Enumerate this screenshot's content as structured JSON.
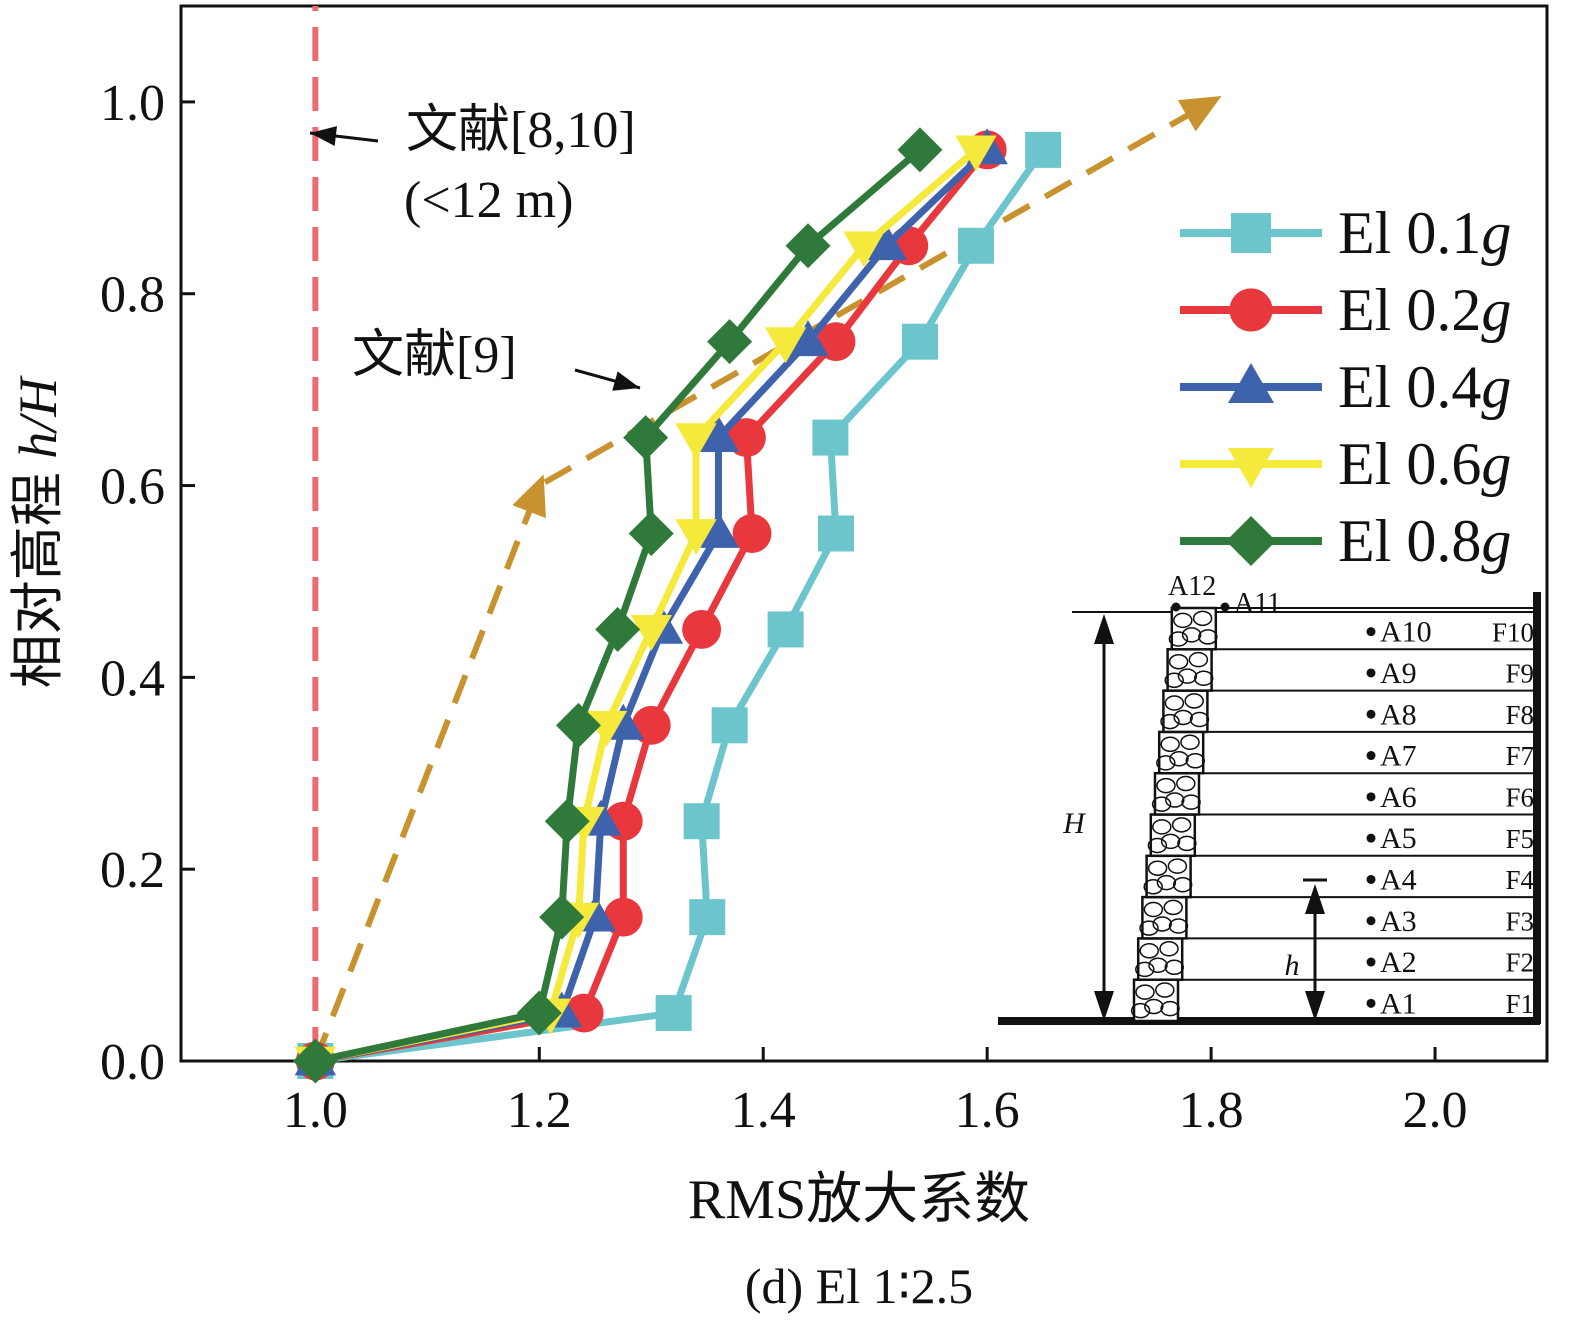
{
  "chart_data": {
    "type": "line",
    "xlabel": "RMS放大系数",
    "ylabel": "相对高程 h/H",
    "ylabel_main": "相对高程 ",
    "ylabel_italic": "h/H",
    "caption": "(d) El 1∶2.5",
    "xlim": [
      0.88,
      2.1
    ],
    "ylim": [
      0.0,
      1.1
    ],
    "xticks": [
      1.0,
      1.2,
      1.4,
      1.6,
      1.8,
      2.0
    ],
    "xtick_labels": [
      "1.0",
      "1.2",
      "1.4",
      "1.6",
      "1.8",
      "2.0"
    ],
    "yticks": [
      0.0,
      0.2,
      0.4,
      0.6,
      0.8,
      1.0
    ],
    "ytick_labels": [
      "0.0",
      "0.2",
      "0.4",
      "0.6",
      "0.8",
      "1.0"
    ],
    "series": [
      {
        "name": "El 0.1g",
        "prefix": "El 0.1",
        "suffix": "g",
        "color": "#6cc5cc",
        "marker": "square",
        "x": [
          1.0,
          1.32,
          1.35,
          1.345,
          1.37,
          1.42,
          1.465,
          1.46,
          1.54,
          1.59,
          1.65
        ],
        "y": [
          0.0,
          0.05,
          0.15,
          0.25,
          0.35,
          0.45,
          0.55,
          0.65,
          0.75,
          0.85,
          0.95
        ]
      },
      {
        "name": "El 0.2g",
        "prefix": "El 0.2",
        "suffix": "g",
        "color": "#e8383d",
        "marker": "circle",
        "x": [
          1.0,
          1.24,
          1.275,
          1.275,
          1.3,
          1.345,
          1.39,
          1.385,
          1.465,
          1.53,
          1.6
        ],
        "y": [
          0.0,
          0.05,
          0.15,
          0.25,
          0.35,
          0.45,
          0.55,
          0.65,
          0.75,
          0.85,
          0.95
        ]
      },
      {
        "name": "El 0.4g",
        "prefix": "El 0.4",
        "suffix": "g",
        "color": "#3f62ad",
        "marker": "triangle-up",
        "x": [
          1.0,
          1.22,
          1.25,
          1.255,
          1.275,
          1.31,
          1.36,
          1.36,
          1.44,
          1.51,
          1.6
        ],
        "y": [
          0.0,
          0.05,
          0.15,
          0.25,
          0.35,
          0.45,
          0.55,
          0.65,
          0.75,
          0.85,
          0.95
        ]
      },
      {
        "name": "El 0.6g",
        "prefix": "El 0.6",
        "suffix": "g",
        "color": "#f5e93c",
        "marker": "triangle-down",
        "x": [
          1.0,
          1.21,
          1.235,
          1.24,
          1.26,
          1.3,
          1.34,
          1.34,
          1.42,
          1.49,
          1.59
        ],
        "y": [
          0.0,
          0.05,
          0.15,
          0.25,
          0.35,
          0.45,
          0.55,
          0.65,
          0.75,
          0.85,
          0.95
        ]
      },
      {
        "name": "El 0.8g",
        "prefix": "El 0.8",
        "suffix": "g",
        "color": "#2f7a3a",
        "marker": "diamond",
        "x": [
          1.0,
          1.2,
          1.22,
          1.225,
          1.235,
          1.27,
          1.3,
          1.295,
          1.37,
          1.44,
          1.54
        ],
        "y": [
          0.0,
          0.05,
          0.15,
          0.25,
          0.35,
          0.45,
          0.55,
          0.65,
          0.75,
          0.85,
          0.95
        ]
      }
    ],
    "reference_lines": [
      {
        "label": "文献[8,10]",
        "label2": "(<12 m)",
        "color": "#ec6a72",
        "style": "dashed",
        "x": [
          1.0,
          1.0
        ],
        "y": [
          0.0,
          1.1
        ]
      },
      {
        "label": "文献[9]",
        "color": "#c8922e",
        "style": "dashed",
        "marker": "triangle",
        "x": [
          1.0,
          1.2,
          1.8
        ],
        "y": [
          0.0,
          0.6,
          1.0
        ]
      }
    ],
    "inset_labels": {
      "top_points": [
        "A12",
        "A11"
      ],
      "points": [
        "A1",
        "A2",
        "A3",
        "A4",
        "A5",
        "A6",
        "A7",
        "A8",
        "A9",
        "A10"
      ],
      "layers": [
        "F1",
        "F2",
        "F3",
        "F4",
        "F5",
        "F6",
        "F7",
        "F8",
        "F9",
        "F10"
      ],
      "height_total": "H",
      "height_partial": "h"
    }
  }
}
